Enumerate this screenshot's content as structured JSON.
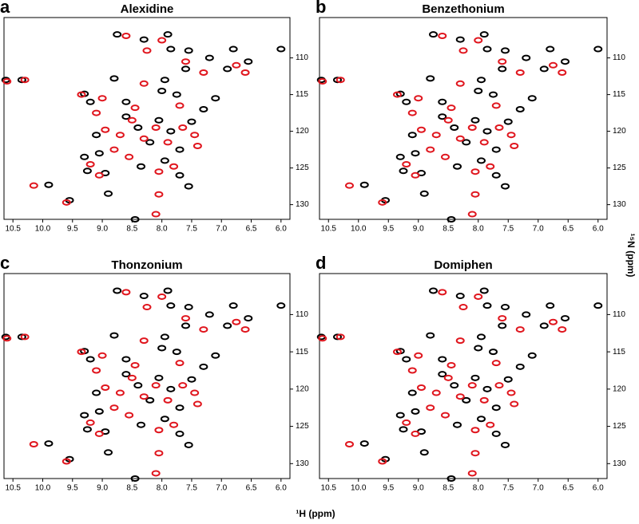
{
  "figure": {
    "xlabel": "¹H (ppm)",
    "ylabel": "¹⁵N (ppm)"
  },
  "chart_data": [
    {
      "type": "scatter",
      "panel_label": "a",
      "title": "Alexidine",
      "xlim": [
        10.65,
        5.85
      ],
      "ylim": [
        104.5,
        132
      ],
      "y_inverted": true,
      "xticks": [
        10.5,
        {
          "value": 10,
          "label": "10.0"
        },
        9.5,
        {
          "value": 9,
          "label": "9.0"
        },
        8.5,
        {
          "value": 8,
          "label": "8.0"
        },
        7.5,
        {
          "value": 7,
          "label": "7.0"
        },
        6.5,
        {
          "value": 6,
          "label": "6.0"
        }
      ],
      "yticks": [
        110,
        115,
        120,
        125,
        130
      ],
      "series": [
        {
          "color": "#000000",
          "x": [
            10.62,
            10.35,
            9.55,
            9.9,
            8.75,
            8.45,
            8.3,
            7.9,
            7.85,
            7.6,
            7.55,
            7.2,
            6.9,
            6.8,
            6.55,
            6.0,
            9.3,
            9.2,
            8.8,
            8.0,
            9.1,
            9.05,
            9.3,
            9.25,
            8.95,
            8.6,
            8.4,
            8.2,
            8.05,
            7.85,
            7.7,
            7.5,
            7.3,
            7.95,
            7.7,
            7.55,
            8.35,
            8.6,
            7.75,
            7.1,
            8.9,
            7.95
          ],
          "values": [
            113.0,
            113.0,
            129.4,
            127.3,
            106.8,
            132.0,
            107.5,
            106.8,
            108.8,
            111.5,
            109.0,
            110.0,
            111.5,
            108.8,
            110.5,
            108.8,
            114.9,
            116.0,
            112.8,
            114.5,
            120.5,
            123.0,
            123.5,
            125.4,
            125.7,
            118.0,
            119.5,
            121.5,
            118.5,
            120.0,
            122.5,
            118.7,
            117.0,
            124.0,
            126.0,
            127.5,
            124.8,
            116.0,
            115.0,
            115.5,
            128.5,
            113.0
          ]
        },
        {
          "color": "#e0161e",
          "x": [
            10.6,
            10.3,
            9.6,
            10.15,
            8.6,
            8.0,
            8.25,
            7.6,
            7.3,
            6.75,
            6.6,
            9.35,
            9.1,
            8.95,
            8.7,
            8.5,
            8.3,
            8.1,
            7.9,
            7.65,
            7.45,
            8.8,
            9.2,
            8.55,
            8.05,
            7.8,
            7.4,
            7.7,
            8.45,
            9.0,
            8.05,
            8.1,
            9.05,
            8.3
          ],
          "values": [
            113.2,
            113.0,
            129.7,
            127.4,
            107.0,
            107.6,
            109.0,
            110.5,
            112.0,
            111.0,
            112.0,
            115.0,
            117.5,
            119.8,
            120.5,
            118.5,
            121.0,
            119.5,
            121.5,
            119.5,
            120.5,
            122.5,
            124.5,
            123.5,
            125.5,
            124.8,
            122.0,
            116.5,
            116.8,
            115.5,
            128.6,
            131.3,
            126.0,
            113.5
          ]
        }
      ]
    },
    {
      "type": "scatter",
      "panel_label": "b",
      "title": "Benzethonium",
      "xlim": [
        10.65,
        5.85
      ],
      "ylim": [
        104.5,
        132
      ],
      "y_inverted": true,
      "xticks": [
        10.5,
        {
          "value": 10,
          "label": "10.0"
        },
        9.5,
        {
          "value": 9,
          "label": "9.0"
        },
        8.5,
        {
          "value": 8,
          "label": "8.0"
        },
        7.5,
        {
          "value": 7,
          "label": "7.0"
        },
        6.5,
        {
          "value": 6,
          "label": "6.0"
        }
      ],
      "yticks": [
        110,
        115,
        120,
        125,
        130
      ],
      "series": [
        {
          "color": "#000000",
          "x": [
            10.62,
            10.35,
            9.55,
            9.9,
            8.75,
            8.45,
            8.3,
            7.9,
            7.85,
            7.6,
            7.55,
            7.2,
            6.9,
            6.8,
            6.55,
            6.0,
            9.3,
            9.2,
            8.8,
            8.0,
            9.1,
            9.05,
            9.3,
            9.25,
            8.95,
            8.6,
            8.4,
            8.2,
            8.05,
            7.85,
            7.7,
            7.5,
            7.3,
            7.95,
            7.7,
            7.55,
            8.35,
            8.6,
            7.75,
            7.1,
            8.9,
            7.95
          ],
          "values": [
            113.0,
            113.0,
            129.4,
            127.3,
            106.8,
            132.0,
            107.5,
            106.8,
            108.8,
            111.5,
            109.0,
            110.0,
            111.5,
            108.8,
            110.5,
            108.8,
            114.9,
            116.0,
            112.8,
            114.5,
            120.5,
            123.0,
            123.5,
            125.4,
            125.7,
            118.0,
            119.5,
            121.5,
            118.5,
            120.0,
            122.5,
            118.7,
            117.0,
            124.0,
            126.0,
            127.5,
            124.8,
            116.0,
            115.0,
            115.5,
            128.5,
            113.0
          ]
        },
        {
          "color": "#e0161e",
          "x": [
            10.6,
            10.3,
            9.6,
            10.15,
            8.6,
            8.0,
            8.25,
            7.6,
            7.3,
            6.75,
            6.6,
            9.35,
            9.1,
            8.95,
            8.7,
            8.5,
            8.3,
            8.1,
            7.9,
            7.65,
            7.45,
            8.8,
            9.2,
            8.55,
            8.05,
            7.8,
            7.4,
            7.7,
            8.45,
            9.0,
            8.05,
            8.1,
            9.05,
            8.3
          ],
          "values": [
            113.2,
            113.0,
            129.7,
            127.4,
            107.0,
            107.6,
            109.0,
            110.5,
            112.0,
            111.0,
            112.0,
            115.0,
            117.5,
            119.8,
            120.5,
            118.5,
            121.0,
            119.5,
            121.5,
            119.5,
            120.5,
            122.5,
            124.5,
            123.5,
            125.5,
            124.8,
            122.0,
            116.5,
            116.8,
            115.5,
            128.6,
            131.3,
            126.0,
            113.5
          ]
        }
      ]
    },
    {
      "type": "scatter",
      "panel_label": "c",
      "title": "Thonzonium",
      "xlim": [
        10.65,
        5.85
      ],
      "ylim": [
        104.5,
        132
      ],
      "y_inverted": true,
      "xticks": [
        10.5,
        {
          "value": 10,
          "label": "10.0"
        },
        9.5,
        {
          "value": 9,
          "label": "9.0"
        },
        8.5,
        {
          "value": 8,
          "label": "8.0"
        },
        7.5,
        {
          "value": 7,
          "label": "7.0"
        },
        6.5,
        {
          "value": 6,
          "label": "6.0"
        }
      ],
      "yticks": [
        110,
        115,
        120,
        125,
        130
      ],
      "series": [
        {
          "color": "#000000",
          "x": [
            10.62,
            10.35,
            9.55,
            9.9,
            8.75,
            8.45,
            8.3,
            7.9,
            7.85,
            7.6,
            7.55,
            7.2,
            6.9,
            6.8,
            6.55,
            6.0,
            9.3,
            9.2,
            8.8,
            8.0,
            9.1,
            9.05,
            9.3,
            9.25,
            8.95,
            8.6,
            8.4,
            8.2,
            8.05,
            7.85,
            7.7,
            7.5,
            7.3,
            7.95,
            7.7,
            7.55,
            8.35,
            8.6,
            7.75,
            7.1,
            8.9,
            7.95
          ],
          "values": [
            113.0,
            113.0,
            129.4,
            127.3,
            106.8,
            132.0,
            107.5,
            106.8,
            108.8,
            111.5,
            109.0,
            110.0,
            111.5,
            108.8,
            110.5,
            108.8,
            114.9,
            116.0,
            112.8,
            114.5,
            120.5,
            123.0,
            123.5,
            125.4,
            125.7,
            118.0,
            119.5,
            121.5,
            118.5,
            120.0,
            122.5,
            118.7,
            117.0,
            124.0,
            126.0,
            127.5,
            124.8,
            116.0,
            115.0,
            115.5,
            128.5,
            113.0
          ]
        },
        {
          "color": "#e0161e",
          "x": [
            10.6,
            10.3,
            9.6,
            10.15,
            8.6,
            8.0,
            8.25,
            7.6,
            7.3,
            6.75,
            6.6,
            9.35,
            9.1,
            8.95,
            8.7,
            8.5,
            8.3,
            8.1,
            7.9,
            7.65,
            7.45,
            8.8,
            9.2,
            8.55,
            8.05,
            7.8,
            7.4,
            7.7,
            8.45,
            9.0,
            8.05,
            8.1,
            9.05,
            8.3
          ],
          "values": [
            113.2,
            113.0,
            129.7,
            127.4,
            107.0,
            107.6,
            109.0,
            110.5,
            112.0,
            111.0,
            112.0,
            115.0,
            117.5,
            119.8,
            120.5,
            118.5,
            121.0,
            119.5,
            121.5,
            119.5,
            120.5,
            122.5,
            124.5,
            123.5,
            125.5,
            124.8,
            122.0,
            116.5,
            116.8,
            115.5,
            128.6,
            131.3,
            126.0,
            113.5
          ]
        }
      ]
    },
    {
      "type": "scatter",
      "panel_label": "d",
      "title": "Domiphen",
      "xlim": [
        10.65,
        5.85
      ],
      "ylim": [
        104.5,
        132
      ],
      "y_inverted": true,
      "xticks": [
        10.5,
        {
          "value": 10,
          "label": "10.0"
        },
        9.5,
        {
          "value": 9,
          "label": "9.0"
        },
        8.5,
        {
          "value": 8,
          "label": "8.0"
        },
        7.5,
        {
          "value": 7,
          "label": "7.0"
        },
        6.5,
        {
          "value": 6,
          "label": "6.0"
        }
      ],
      "yticks": [
        110,
        115,
        120,
        125,
        130
      ],
      "series": [
        {
          "color": "#000000",
          "x": [
            10.62,
            10.35,
            9.55,
            9.9,
            8.75,
            8.45,
            8.3,
            7.9,
            7.85,
            7.6,
            7.55,
            7.2,
            6.9,
            6.8,
            6.55,
            6.0,
            9.3,
            9.2,
            8.8,
            8.0,
            9.1,
            9.05,
            9.3,
            9.25,
            8.95,
            8.6,
            8.4,
            8.2,
            8.05,
            7.85,
            7.7,
            7.5,
            7.3,
            7.95,
            7.7,
            7.55,
            8.35,
            8.6,
            7.75,
            7.1,
            8.9,
            7.95
          ],
          "values": [
            113.0,
            113.0,
            129.4,
            127.3,
            106.8,
            132.0,
            107.5,
            106.8,
            108.8,
            111.5,
            109.0,
            110.0,
            111.5,
            108.8,
            110.5,
            108.8,
            114.9,
            116.0,
            112.8,
            114.5,
            120.5,
            123.0,
            123.5,
            125.4,
            125.7,
            118.0,
            119.5,
            121.5,
            118.5,
            120.0,
            122.5,
            118.7,
            117.0,
            124.0,
            126.0,
            127.5,
            124.8,
            116.0,
            115.0,
            115.5,
            128.5,
            113.0
          ]
        },
        {
          "color": "#e0161e",
          "x": [
            10.6,
            10.3,
            9.6,
            10.15,
            8.6,
            8.0,
            8.25,
            7.6,
            7.3,
            6.75,
            6.6,
            9.35,
            9.1,
            8.95,
            8.7,
            8.5,
            8.3,
            8.1,
            7.9,
            7.65,
            7.45,
            8.8,
            9.2,
            8.55,
            8.05,
            7.8,
            7.4,
            7.7,
            8.45,
            9.0,
            8.05,
            8.1,
            9.05,
            8.3
          ],
          "values": [
            113.2,
            113.0,
            129.7,
            127.4,
            107.0,
            107.6,
            109.0,
            110.5,
            112.0,
            111.0,
            112.0,
            115.0,
            117.5,
            119.8,
            120.5,
            118.5,
            121.0,
            119.5,
            121.5,
            119.5,
            120.5,
            122.5,
            124.5,
            123.5,
            125.5,
            124.8,
            122.0,
            116.5,
            116.8,
            115.5,
            128.6,
            131.3,
            126.0,
            113.5
          ]
        }
      ]
    }
  ]
}
